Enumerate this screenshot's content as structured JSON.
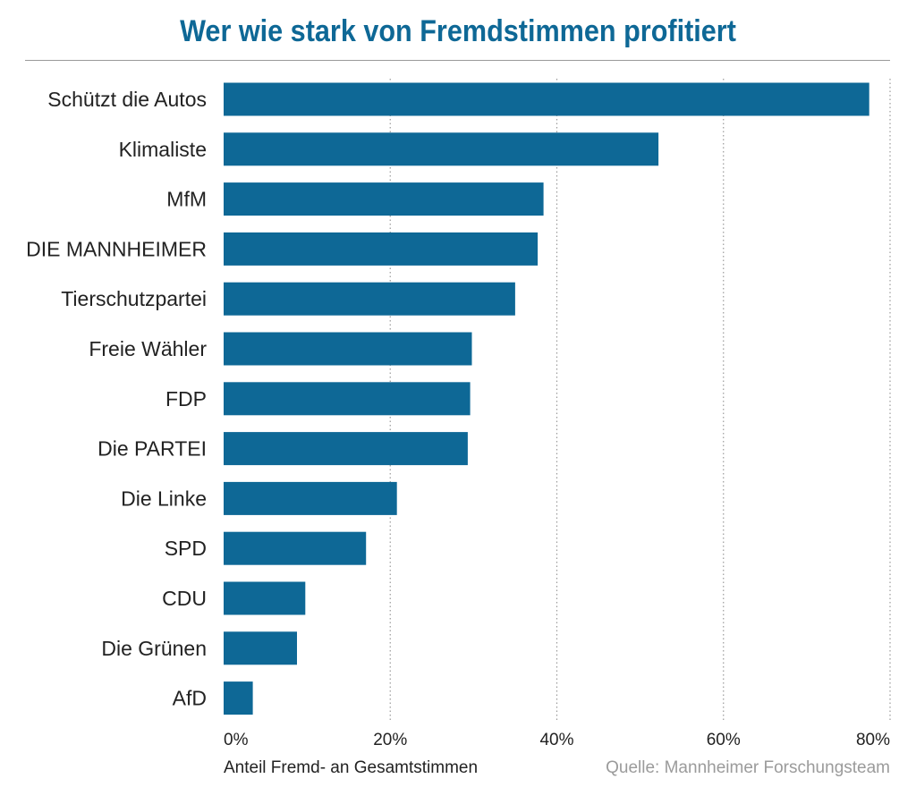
{
  "chart_data": {
    "type": "bar",
    "orientation": "horizontal",
    "title": "Wer wie stark von Fremdstimmen profitiert",
    "xlabel": "Anteil Fremd- an Gesamtstimmen",
    "source": "Quelle: Mannheimer Forschungsteam",
    "categories": [
      "Schützt die Autos",
      "Klimaliste",
      "MfM",
      "DIE MANNHEIMER",
      "Tierschutzpartei",
      "Freie Wähler",
      "FDP",
      "Die PARTEI",
      "Die Linke",
      "SPD",
      "CDU",
      "Die Grünen",
      "AfD"
    ],
    "values": [
      77.5,
      52.2,
      38.4,
      37.7,
      35.0,
      29.8,
      29.6,
      29.3,
      20.8,
      17.1,
      9.8,
      8.8,
      3.5
    ],
    "xlim": [
      0,
      80
    ],
    "xticks": [
      0,
      20,
      40,
      60,
      80
    ],
    "xtick_labels": [
      "0%",
      "20%",
      "40%",
      "60%",
      "80%"
    ],
    "grid": true,
    "bar_color": "#0e6896",
    "grid_color": "#9a9a9a"
  }
}
